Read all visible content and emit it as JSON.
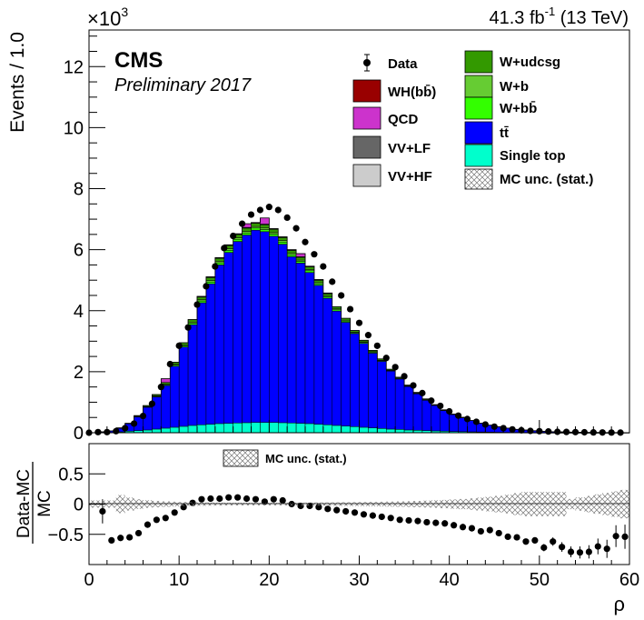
{
  "header": {
    "exponent_prefix": "×10",
    "exponent_power": "3",
    "lumi": "41.3 fb",
    "lumi_power": "-1",
    "lumi_energy": "(13 TeV)",
    "cms": "CMS",
    "preliminary": "Preliminary 2017"
  },
  "axes": {
    "top_ylabel": "Events / 1.0",
    "bottom_ylabel_num": "Data-MC",
    "bottom_ylabel_den": "MC",
    "xlabel": "ρ"
  },
  "legend": [
    {
      "key": "data",
      "label": "Data",
      "color": "#000000"
    },
    {
      "key": "whbb",
      "label": "WH(bb̄)",
      "color": "#990000"
    },
    {
      "key": "qcd",
      "label": "QCD",
      "color": "#cc33cc"
    },
    {
      "key": "vvlf",
      "label": "VV+LF",
      "color": "#666666"
    },
    {
      "key": "vvhf",
      "label": "VV+HF",
      "color": "#cccccc"
    },
    {
      "key": "wudcsg",
      "label": "W+udcsg",
      "color": "#339900"
    },
    {
      "key": "wb",
      "label": "W+b",
      "color": "#66cc33"
    },
    {
      "key": "wbb",
      "label": "W+bb̄",
      "color": "#33ff00"
    },
    {
      "key": "ttbar",
      "label": "tt̄",
      "color": "#0000ff"
    },
    {
      "key": "singletop",
      "label": "Single top",
      "color": "#00ffcc"
    },
    {
      "key": "mcunc",
      "label": "MC unc. (stat.)",
      "color": "#888888"
    }
  ],
  "ratio_legend": "MC unc. (stat.)",
  "chart_data": [
    {
      "type": "bar",
      "subtype": "stacked histogram with data points",
      "xlabel": "ρ",
      "ylabel": "Events / 1.0",
      "y_multiplier": 1000,
      "xlim": [
        0,
        60
      ],
      "ylim": [
        0,
        13.2
      ],
      "x_ticks": [
        0,
        10,
        20,
        30,
        40,
        50,
        60
      ],
      "y_ticks": [
        0,
        2,
        4,
        6,
        8,
        10,
        12
      ],
      "bin_width": 1,
      "bin_edges_start": 0,
      "series": [
        {
          "name": "Single top",
          "values": [
            0,
            0.01,
            0.01,
            0.03,
            0.05,
            0.07,
            0.09,
            0.12,
            0.15,
            0.18,
            0.21,
            0.24,
            0.26,
            0.28,
            0.3,
            0.31,
            0.32,
            0.33,
            0.34,
            0.34,
            0.34,
            0.33,
            0.32,
            0.31,
            0.3,
            0.28,
            0.26,
            0.24,
            0.22,
            0.2,
            0.18,
            0.16,
            0.14,
            0.12,
            0.11,
            0.09,
            0.08,
            0.07,
            0.06,
            0.05,
            0.04,
            0.035,
            0.03,
            0.025,
            0.02,
            0.015,
            0.012,
            0.01,
            0.008,
            0.006,
            0.005,
            0.004,
            0.003,
            0.002,
            0.002,
            0.001,
            0.001,
            0.001,
            0,
            0
          ]
        },
        {
          "name": "tt̄",
          "values": [
            0,
            0.02,
            0.05,
            0.12,
            0.25,
            0.45,
            0.75,
            1.05,
            1.4,
            2.0,
            2.6,
            3.3,
            4.0,
            4.6,
            5.2,
            5.6,
            5.95,
            6.15,
            6.3,
            6.25,
            6.1,
            5.85,
            5.45,
            5.25,
            4.95,
            4.55,
            4.15,
            3.75,
            3.4,
            3.05,
            2.75,
            2.45,
            2.2,
            1.9,
            1.65,
            1.43,
            1.2,
            1.0,
            0.84,
            0.68,
            0.56,
            0.46,
            0.37,
            0.29,
            0.23,
            0.18,
            0.14,
            0.1,
            0.08,
            0.06,
            0.04,
            0.03,
            0.025,
            0.02,
            0.015,
            0.01,
            0.008,
            0.006,
            0.005,
            0.004
          ]
        },
        {
          "name": "W+bb̄",
          "values": [
            0,
            0,
            0,
            0,
            0,
            0.01,
            0.01,
            0.02,
            0.03,
            0.04,
            0.04,
            0.05,
            0.06,
            0.06,
            0.07,
            0.07,
            0.07,
            0.07,
            0.07,
            0.07,
            0.07,
            0.07,
            0.06,
            0.06,
            0.06,
            0.05,
            0.05,
            0.04,
            0.04,
            0.03,
            0.03,
            0.03,
            0.02,
            0.02,
            0.02,
            0.01,
            0.01,
            0.01,
            0.01,
            0.01,
            0,
            0,
            0,
            0,
            0,
            0,
            0,
            0,
            0,
            0,
            0,
            0,
            0,
            0,
            0,
            0,
            0,
            0,
            0,
            0
          ]
        },
        {
          "name": "W+b",
          "values": [
            0,
            0,
            0,
            0,
            0,
            0.01,
            0.01,
            0.02,
            0.02,
            0.03,
            0.03,
            0.04,
            0.04,
            0.05,
            0.05,
            0.05,
            0.05,
            0.05,
            0.05,
            0.05,
            0.05,
            0.05,
            0.05,
            0.04,
            0.04,
            0.04,
            0.03,
            0.03,
            0.03,
            0.02,
            0.02,
            0.02,
            0.02,
            0.01,
            0.01,
            0.01,
            0.01,
            0.01,
            0,
            0,
            0,
            0,
            0,
            0,
            0,
            0,
            0,
            0,
            0,
            0,
            0,
            0,
            0,
            0,
            0,
            0,
            0,
            0,
            0,
            0
          ]
        },
        {
          "name": "W+udcsg",
          "values": [
            0,
            0,
            0,
            0.01,
            0.01,
            0.02,
            0.03,
            0.04,
            0.05,
            0.06,
            0.07,
            0.08,
            0.09,
            0.1,
            0.1,
            0.11,
            0.11,
            0.11,
            0.11,
            0.11,
            0.11,
            0.1,
            0.1,
            0.09,
            0.09,
            0.08,
            0.07,
            0.07,
            0.06,
            0.05,
            0.05,
            0.04,
            0.04,
            0.03,
            0.03,
            0.02,
            0.02,
            0.02,
            0.01,
            0.01,
            0.01,
            0.01,
            0,
            0,
            0,
            0,
            0,
            0,
            0,
            0,
            0,
            0,
            0,
            0,
            0,
            0,
            0,
            0,
            0,
            0
          ]
        },
        {
          "name": "VV+HF",
          "values": [
            0,
            0,
            0,
            0,
            0,
            0,
            0,
            0,
            0,
            0,
            0,
            0,
            0.01,
            0.01,
            0.01,
            0.01,
            0.01,
            0.01,
            0.01,
            0.01,
            0.01,
            0.01,
            0.01,
            0.01,
            0.01,
            0.01,
            0.01,
            0,
            0,
            0,
            0,
            0,
            0,
            0,
            0,
            0,
            0,
            0,
            0,
            0,
            0,
            0,
            0,
            0,
            0,
            0,
            0,
            0,
            0,
            0,
            0,
            0,
            0,
            0,
            0,
            0,
            0,
            0,
            0,
            0
          ]
        },
        {
          "name": "VV+LF",
          "values": [
            0,
            0,
            0,
            0,
            0,
            0,
            0,
            0,
            0,
            0,
            0,
            0,
            0.01,
            0.01,
            0.01,
            0.01,
            0.01,
            0.01,
            0.01,
            0.01,
            0.01,
            0.01,
            0.01,
            0.01,
            0.01,
            0.01,
            0.01,
            0,
            0,
            0,
            0,
            0,
            0,
            0,
            0,
            0,
            0,
            0,
            0,
            0,
            0,
            0,
            0,
            0,
            0,
            0,
            0,
            0,
            0,
            0,
            0,
            0,
            0,
            0,
            0,
            0,
            0,
            0,
            0,
            0
          ]
        },
        {
          "name": "QCD",
          "values": [
            0,
            0,
            0,
            0,
            0,
            0,
            0,
            0,
            0.12,
            0,
            0,
            0,
            0,
            0,
            0,
            0,
            0,
            0.12,
            0,
            0.2,
            0,
            0,
            0,
            0.1,
            0,
            0,
            0,
            0,
            0,
            0,
            0,
            0,
            0,
            0,
            0,
            0,
            0,
            0,
            0,
            0,
            0,
            0,
            0,
            0,
            0,
            0,
            0,
            0,
            0,
            0,
            0,
            0,
            0,
            0,
            0,
            0,
            0,
            0,
            0,
            0
          ]
        },
        {
          "name": "WH(bb̄)",
          "values": [
            0,
            0,
            0,
            0,
            0,
            0,
            0,
            0,
            0,
            0,
            0,
            0,
            0,
            0,
            0,
            0,
            0,
            0,
            0,
            0,
            0,
            0,
            0,
            0,
            0,
            0,
            0,
            0,
            0,
            0,
            0,
            0,
            0,
            0,
            0,
            0,
            0,
            0,
            0,
            0,
            0,
            0,
            0,
            0,
            0,
            0,
            0,
            0,
            0,
            0,
            0,
            0,
            0,
            0,
            0,
            0,
            0,
            0,
            0,
            0
          ]
        }
      ],
      "data": {
        "name": "Data",
        "values": [
          0,
          0.02,
          0.02,
          0.05,
          0.15,
          0.3,
          0.55,
          0.95,
          1.5,
          2.25,
          2.85,
          3.45,
          4.2,
          4.8,
          5.45,
          6.05,
          6.45,
          6.85,
          7.15,
          7.3,
          7.4,
          7.3,
          7.05,
          6.7,
          6.25,
          5.85,
          5.45,
          4.95,
          4.5,
          4.05,
          3.6,
          3.2,
          2.85,
          2.45,
          2.15,
          1.85,
          1.55,
          1.3,
          1.05,
          0.88,
          0.7,
          0.56,
          0.45,
          0.36,
          0.27,
          0.2,
          0.15,
          0.11,
          0.08,
          0.06,
          0.05,
          0.04,
          0.03,
          0.025,
          0.02,
          0.015,
          0.01,
          0.008,
          0.005,
          0.004
        ],
        "x_offset": -0.5
      }
    },
    {
      "type": "scatter",
      "subtype": "ratio panel",
      "xlabel": "ρ",
      "ylabel": "(Data-MC)/MC",
      "xlim": [
        0,
        60
      ],
      "ylim": [
        -1,
        1
      ],
      "x_ticks": [
        0,
        10,
        20,
        30,
        40,
        50,
        60
      ],
      "y_ticks": [
        -0.5,
        0,
        0.5
      ],
      "points": [
        {
          "x": 1.5,
          "y": -0.12,
          "err": 0.2
        },
        {
          "x": 2.5,
          "y": -0.6,
          "err": 0.05
        },
        {
          "x": 3.5,
          "y": -0.56,
          "err": 0.04
        },
        {
          "x": 4.5,
          "y": -0.55,
          "err": 0.03
        },
        {
          "x": 5.5,
          "y": -0.48,
          "err": 0.02
        },
        {
          "x": 6.5,
          "y": -0.34,
          "err": 0.01
        },
        {
          "x": 7.5,
          "y": -0.26,
          "err": 0.01
        },
        {
          "x": 8.5,
          "y": -0.23,
          "err": 0.01
        },
        {
          "x": 9.5,
          "y": -0.14,
          "err": 0.01
        },
        {
          "x": 10.5,
          "y": -0.05,
          "err": 0.01
        },
        {
          "x": 11.5,
          "y": 0.02,
          "err": 0.01
        },
        {
          "x": 12.5,
          "y": 0.08,
          "err": 0.01
        },
        {
          "x": 13.5,
          "y": 0.09,
          "err": 0.01
        },
        {
          "x": 14.5,
          "y": 0.09,
          "err": 0.01
        },
        {
          "x": 15.5,
          "y": 0.11,
          "err": 0.01
        },
        {
          "x": 16.5,
          "y": 0.11,
          "err": 0.01
        },
        {
          "x": 17.5,
          "y": 0.09,
          "err": 0.01
        },
        {
          "x": 18.5,
          "y": 0.08,
          "err": 0.01
        },
        {
          "x": 19.5,
          "y": 0.04,
          "err": 0.01
        },
        {
          "x": 20.5,
          "y": 0.08,
          "err": 0.01
        },
        {
          "x": 21.5,
          "y": 0.06,
          "err": 0.01
        },
        {
          "x": 22.5,
          "y": 0.0,
          "err": 0.01
        },
        {
          "x": 23.5,
          "y": -0.03,
          "err": 0.01
        },
        {
          "x": 24.5,
          "y": -0.03,
          "err": 0.01
        },
        {
          "x": 25.5,
          "y": -0.05,
          "err": 0.01
        },
        {
          "x": 26.5,
          "y": -0.08,
          "err": 0.01
        },
        {
          "x": 27.5,
          "y": -0.1,
          "err": 0.01
        },
        {
          "x": 28.5,
          "y": -0.12,
          "err": 0.01
        },
        {
          "x": 29.5,
          "y": -0.14,
          "err": 0.01
        },
        {
          "x": 30.5,
          "y": -0.17,
          "err": 0.01
        },
        {
          "x": 31.5,
          "y": -0.19,
          "err": 0.01
        },
        {
          "x": 32.5,
          "y": -0.21,
          "err": 0.01
        },
        {
          "x": 33.5,
          "y": -0.23,
          "err": 0.01
        },
        {
          "x": 34.5,
          "y": -0.26,
          "err": 0.01
        },
        {
          "x": 35.5,
          "y": -0.27,
          "err": 0.01
        },
        {
          "x": 36.5,
          "y": -0.28,
          "err": 0.01
        },
        {
          "x": 37.5,
          "y": -0.3,
          "err": 0.01
        },
        {
          "x": 38.5,
          "y": -0.31,
          "err": 0.02
        },
        {
          "x": 39.5,
          "y": -0.32,
          "err": 0.02
        },
        {
          "x": 40.5,
          "y": -0.35,
          "err": 0.02
        },
        {
          "x": 41.5,
          "y": -0.38,
          "err": 0.02
        },
        {
          "x": 42.5,
          "y": -0.4,
          "err": 0.02
        },
        {
          "x": 43.5,
          "y": -0.45,
          "err": 0.02
        },
        {
          "x": 44.5,
          "y": -0.43,
          "err": 0.03
        },
        {
          "x": 45.5,
          "y": -0.48,
          "err": 0.03
        },
        {
          "x": 46.5,
          "y": -0.54,
          "err": 0.03
        },
        {
          "x": 47.5,
          "y": -0.55,
          "err": 0.04
        },
        {
          "x": 48.5,
          "y": -0.62,
          "err": 0.04
        },
        {
          "x": 49.5,
          "y": -0.6,
          "err": 0.05
        },
        {
          "x": 50.5,
          "y": -0.72,
          "err": 0.06
        },
        {
          "x": 51.5,
          "y": -0.62,
          "err": 0.07
        },
        {
          "x": 52.5,
          "y": -0.71,
          "err": 0.08
        },
        {
          "x": 53.5,
          "y": -0.79,
          "err": 0.09
        },
        {
          "x": 54.5,
          "y": -0.8,
          "err": 0.1
        },
        {
          "x": 55.5,
          "y": -0.79,
          "err": 0.11
        },
        {
          "x": 56.5,
          "y": -0.7,
          "err": 0.13
        },
        {
          "x": 57.5,
          "y": -0.74,
          "err": 0.15
        },
        {
          "x": 58.5,
          "y": -0.53,
          "err": 0.18
        },
        {
          "x": 59.5,
          "y": -0.54,
          "err": 0.2
        }
      ]
    }
  ]
}
